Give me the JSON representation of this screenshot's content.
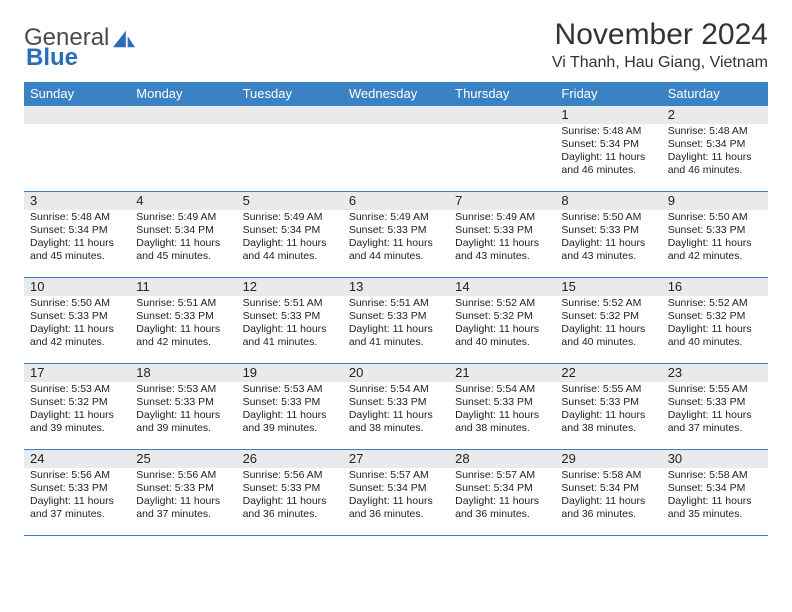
{
  "brand": {
    "part1": "General",
    "part2": "Blue"
  },
  "title": "November 2024",
  "location": "Vi Thanh, Hau Giang, Vietnam",
  "colors": {
    "header_bg": "#3b82c4",
    "header_text": "#ffffff",
    "band_bg": "#e9eaeb",
    "border": "#3b82c4",
    "brand_gray": "#4a4a4a",
    "brand_blue": "#2a6db8"
  },
  "dow": [
    "Sunday",
    "Monday",
    "Tuesday",
    "Wednesday",
    "Thursday",
    "Friday",
    "Saturday"
  ],
  "weeks": [
    [
      null,
      null,
      null,
      null,
      null,
      {
        "n": "1",
        "sunrise": "Sunrise: 5:48 AM",
        "sunset": "Sunset: 5:34 PM",
        "daylight": "Daylight: 11 hours and 46 minutes."
      },
      {
        "n": "2",
        "sunrise": "Sunrise: 5:48 AM",
        "sunset": "Sunset: 5:34 PM",
        "daylight": "Daylight: 11 hours and 46 minutes."
      }
    ],
    [
      {
        "n": "3",
        "sunrise": "Sunrise: 5:48 AM",
        "sunset": "Sunset: 5:34 PM",
        "daylight": "Daylight: 11 hours and 45 minutes."
      },
      {
        "n": "4",
        "sunrise": "Sunrise: 5:49 AM",
        "sunset": "Sunset: 5:34 PM",
        "daylight": "Daylight: 11 hours and 45 minutes."
      },
      {
        "n": "5",
        "sunrise": "Sunrise: 5:49 AM",
        "sunset": "Sunset: 5:34 PM",
        "daylight": "Daylight: 11 hours and 44 minutes."
      },
      {
        "n": "6",
        "sunrise": "Sunrise: 5:49 AM",
        "sunset": "Sunset: 5:33 PM",
        "daylight": "Daylight: 11 hours and 44 minutes."
      },
      {
        "n": "7",
        "sunrise": "Sunrise: 5:49 AM",
        "sunset": "Sunset: 5:33 PM",
        "daylight": "Daylight: 11 hours and 43 minutes."
      },
      {
        "n": "8",
        "sunrise": "Sunrise: 5:50 AM",
        "sunset": "Sunset: 5:33 PM",
        "daylight": "Daylight: 11 hours and 43 minutes."
      },
      {
        "n": "9",
        "sunrise": "Sunrise: 5:50 AM",
        "sunset": "Sunset: 5:33 PM",
        "daylight": "Daylight: 11 hours and 42 minutes."
      }
    ],
    [
      {
        "n": "10",
        "sunrise": "Sunrise: 5:50 AM",
        "sunset": "Sunset: 5:33 PM",
        "daylight": "Daylight: 11 hours and 42 minutes."
      },
      {
        "n": "11",
        "sunrise": "Sunrise: 5:51 AM",
        "sunset": "Sunset: 5:33 PM",
        "daylight": "Daylight: 11 hours and 42 minutes."
      },
      {
        "n": "12",
        "sunrise": "Sunrise: 5:51 AM",
        "sunset": "Sunset: 5:33 PM",
        "daylight": "Daylight: 11 hours and 41 minutes."
      },
      {
        "n": "13",
        "sunrise": "Sunrise: 5:51 AM",
        "sunset": "Sunset: 5:33 PM",
        "daylight": "Daylight: 11 hours and 41 minutes."
      },
      {
        "n": "14",
        "sunrise": "Sunrise: 5:52 AM",
        "sunset": "Sunset: 5:32 PM",
        "daylight": "Daylight: 11 hours and 40 minutes."
      },
      {
        "n": "15",
        "sunrise": "Sunrise: 5:52 AM",
        "sunset": "Sunset: 5:32 PM",
        "daylight": "Daylight: 11 hours and 40 minutes."
      },
      {
        "n": "16",
        "sunrise": "Sunrise: 5:52 AM",
        "sunset": "Sunset: 5:32 PM",
        "daylight": "Daylight: 11 hours and 40 minutes."
      }
    ],
    [
      {
        "n": "17",
        "sunrise": "Sunrise: 5:53 AM",
        "sunset": "Sunset: 5:32 PM",
        "daylight": "Daylight: 11 hours and 39 minutes."
      },
      {
        "n": "18",
        "sunrise": "Sunrise: 5:53 AM",
        "sunset": "Sunset: 5:33 PM",
        "daylight": "Daylight: 11 hours and 39 minutes."
      },
      {
        "n": "19",
        "sunrise": "Sunrise: 5:53 AM",
        "sunset": "Sunset: 5:33 PM",
        "daylight": "Daylight: 11 hours and 39 minutes."
      },
      {
        "n": "20",
        "sunrise": "Sunrise: 5:54 AM",
        "sunset": "Sunset: 5:33 PM",
        "daylight": "Daylight: 11 hours and 38 minutes."
      },
      {
        "n": "21",
        "sunrise": "Sunrise: 5:54 AM",
        "sunset": "Sunset: 5:33 PM",
        "daylight": "Daylight: 11 hours and 38 minutes."
      },
      {
        "n": "22",
        "sunrise": "Sunrise: 5:55 AM",
        "sunset": "Sunset: 5:33 PM",
        "daylight": "Daylight: 11 hours and 38 minutes."
      },
      {
        "n": "23",
        "sunrise": "Sunrise: 5:55 AM",
        "sunset": "Sunset: 5:33 PM",
        "daylight": "Daylight: 11 hours and 37 minutes."
      }
    ],
    [
      {
        "n": "24",
        "sunrise": "Sunrise: 5:56 AM",
        "sunset": "Sunset: 5:33 PM",
        "daylight": "Daylight: 11 hours and 37 minutes."
      },
      {
        "n": "25",
        "sunrise": "Sunrise: 5:56 AM",
        "sunset": "Sunset: 5:33 PM",
        "daylight": "Daylight: 11 hours and 37 minutes."
      },
      {
        "n": "26",
        "sunrise": "Sunrise: 5:56 AM",
        "sunset": "Sunset: 5:33 PM",
        "daylight": "Daylight: 11 hours and 36 minutes."
      },
      {
        "n": "27",
        "sunrise": "Sunrise: 5:57 AM",
        "sunset": "Sunset: 5:34 PM",
        "daylight": "Daylight: 11 hours and 36 minutes."
      },
      {
        "n": "28",
        "sunrise": "Sunrise: 5:57 AM",
        "sunset": "Sunset: 5:34 PM",
        "daylight": "Daylight: 11 hours and 36 minutes."
      },
      {
        "n": "29",
        "sunrise": "Sunrise: 5:58 AM",
        "sunset": "Sunset: 5:34 PM",
        "daylight": "Daylight: 11 hours and 36 minutes."
      },
      {
        "n": "30",
        "sunrise": "Sunrise: 5:58 AM",
        "sunset": "Sunset: 5:34 PM",
        "daylight": "Daylight: 11 hours and 35 minutes."
      }
    ]
  ]
}
